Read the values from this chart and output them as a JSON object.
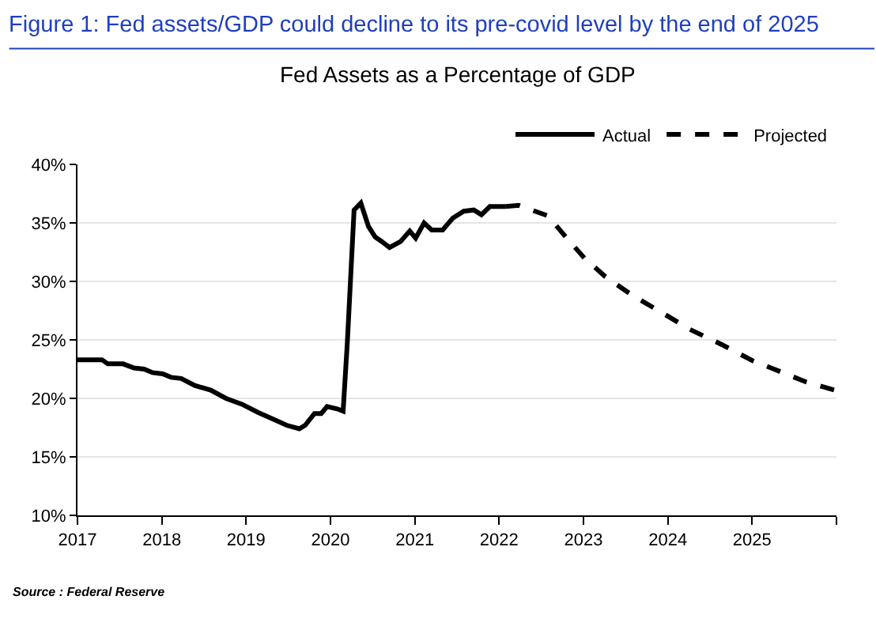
{
  "chart_data": {
    "type": "line",
    "title": "Figure 1: Fed assets/GDP could decline to its pre-covid level by the end of 2025",
    "subtitle": "Fed Assets as a Percentage of GDP",
    "annotations": [
      "Source : Federal Reserve"
    ],
    "xlim": [
      2017,
      2026
    ],
    "xticks": [
      2017,
      2018,
      2019,
      2020,
      2021,
      2022,
      2023,
      2024,
      2025,
      {
        "value": 2026,
        "label": null
      }
    ],
    "ylim": [
      10,
      40
    ],
    "yticks": [
      {
        "value": 10,
        "label": "10%"
      },
      {
        "value": 15,
        "label": "15%"
      },
      {
        "value": 20,
        "label": "20%"
      },
      {
        "value": 25,
        "label": "25%"
      },
      {
        "value": 30,
        "label": "30%"
      },
      {
        "value": 35,
        "label": "35%"
      },
      {
        "value": 40,
        "label": "40%"
      }
    ],
    "grid": "y",
    "legend": "top right",
    "marker": "none",
    "series": [
      {
        "name": "Actual",
        "color": "#000000",
        "line_style": "solid",
        "x": [
          2017.0,
          2017.29,
          2017.36,
          2017.54,
          2017.67,
          2017.79,
          2017.89,
          2018.01,
          2018.11,
          2018.23,
          2018.39,
          2018.58,
          2018.76,
          2018.95,
          2019.14,
          2019.33,
          2019.48,
          2019.63,
          2019.7,
          2019.81,
          2019.89,
          2019.96,
          2020.08,
          2020.15,
          2020.2,
          2020.28,
          2020.36,
          2020.45,
          2020.53,
          2020.61,
          2020.7,
          2020.83,
          2020.94,
          2021.01,
          2021.11,
          2021.2,
          2021.33,
          2021.45,
          2021.58,
          2021.7,
          2021.79,
          2021.89,
          2022.08
        ],
        "values": [
          23.3,
          23.3,
          22.95,
          22.95,
          22.6,
          22.5,
          22.2,
          22.1,
          21.8,
          21.7,
          21.1,
          20.7,
          20.0,
          19.5,
          18.8,
          18.2,
          17.7,
          17.4,
          17.7,
          18.7,
          18.7,
          19.3,
          19.1,
          18.9,
          24.8,
          36.1,
          36.7,
          34.7,
          33.8,
          33.4,
          32.9,
          33.4,
          34.3,
          33.7,
          35.0,
          34.4,
          34.4,
          35.4,
          36.0,
          36.1,
          35.7,
          36.4,
          36.4
        ]
      },
      {
        "name": "Projected",
        "color": "#000000",
        "line_style": "dashed",
        "x": [
          2022.08,
          2022.23,
          2022.58,
          2022.79,
          2023.01,
          2023.26,
          2023.58,
          2023.89,
          2024.26,
          2024.64,
          2025.01,
          2025.26,
          2025.64,
          2025.98
        ],
        "values": [
          36.4,
          36.5,
          35.6,
          33.8,
          32.0,
          30.4,
          28.8,
          27.5,
          25.9,
          24.6,
          23.2,
          22.5,
          21.4,
          20.7
        ]
      }
    ]
  }
}
